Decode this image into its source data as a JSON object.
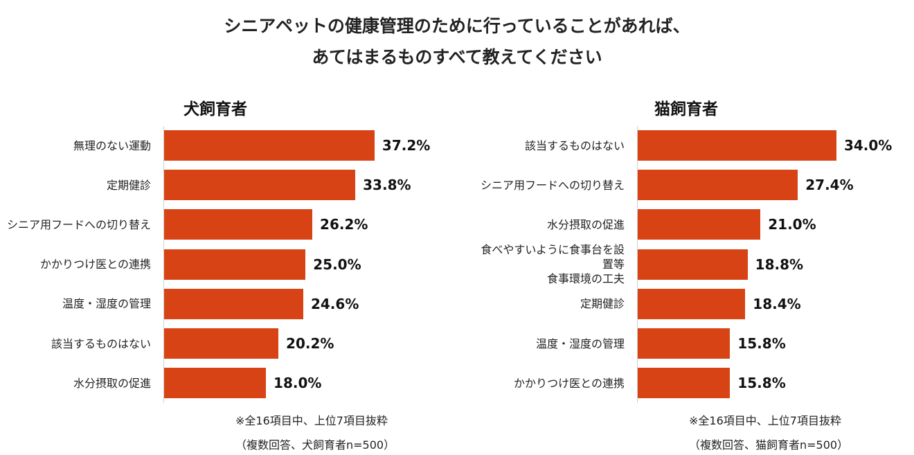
{
  "title": [
    "シニアペットの健康管理のために行っていることがあれば、",
    "あてはまるものすべて教えてください"
  ],
  "chart_data": [
    {
      "type": "bar",
      "orientation": "horizontal",
      "subtitle": "犬飼育者",
      "categories": [
        "無理のない運動",
        "定期健診",
        "シニア用フードへの切り替え",
        "かかりつけ医との連携",
        "温度・湿度の管理",
        "該当するものはない",
        "水分摂取の促進"
      ],
      "values": [
        37.2,
        33.8,
        26.2,
        25.0,
        24.6,
        20.2,
        18.0
      ],
      "value_labels": [
        "37.2%",
        "33.8%",
        "26.2%",
        "25.0%",
        "24.6%",
        "20.2%",
        "18.0%"
      ],
      "color": "#d84315",
      "notes": [
        "※全16項目中、上位7項目抜粋",
        "（複数回答、犬飼育者n=500）"
      ]
    },
    {
      "type": "bar",
      "orientation": "horizontal",
      "subtitle": "猫飼育者",
      "categories": [
        "該当するものはない",
        "シニア用フードへの切り替え",
        "水分摂取の促進",
        "食べやすいように食事台を設置等\n食事環境の工夫",
        "定期健診",
        "温度・湿度の管理",
        "かかりつけ医との連携"
      ],
      "values": [
        34.0,
        27.4,
        21.0,
        18.8,
        18.4,
        15.8,
        15.8
      ],
      "value_labels": [
        "34.0%",
        "27.4%",
        "21.0%",
        "18.8%",
        "18.4%",
        "15.8%",
        "15.8%"
      ],
      "color": "#d84315",
      "notes": [
        "※全16項目中、上位7項目抜粋",
        "（複数回答、猫飼育者n=500）"
      ]
    }
  ]
}
